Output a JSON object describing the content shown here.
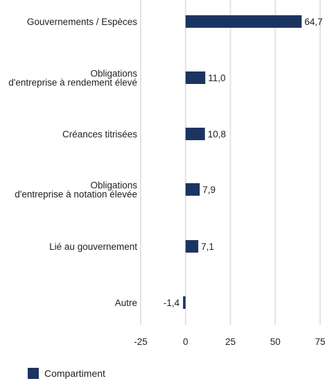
{
  "colors": {
    "bar": "#1c3461",
    "grid": "#e3e3e3"
  },
  "chart_data": {
    "type": "bar",
    "orientation": "horizontal",
    "categories": [
      [
        "Gouvernements / Espèces"
      ],
      [
        "Obligations",
        "d'entreprise à rendement élevé"
      ],
      [
        "Créances titrisées"
      ],
      [
        "Obligations",
        "d'entreprise à notation élevée"
      ],
      [
        "Lié au gouvernement"
      ],
      [
        "Autre"
      ]
    ],
    "series": [
      {
        "name": "Compartiment",
        "values": [
          64.7,
          11.0,
          10.8,
          7.9,
          7.1,
          -1.4
        ],
        "labels": [
          "64,7",
          "11,0",
          "10,8",
          "7,9",
          "7,1",
          "-1,4"
        ]
      }
    ],
    "xticks": [
      -25,
      0,
      25,
      50,
      75
    ],
    "xlim": [
      -25,
      75
    ],
    "grid": true,
    "legend": "bottom-left"
  }
}
